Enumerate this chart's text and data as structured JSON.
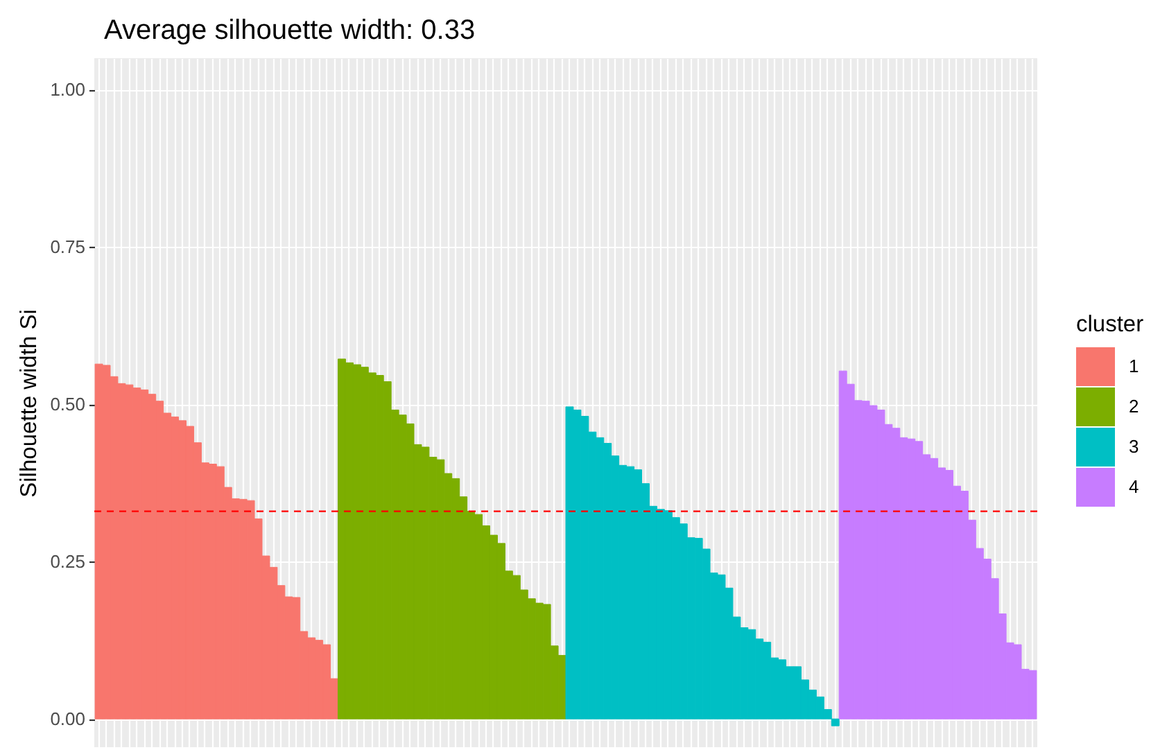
{
  "chart_data": {
    "type": "bar",
    "title": "Average silhouette width: 0.33",
    "ylabel": "Silhouette width Si",
    "legend_title": "cluster",
    "categories": [
      null,
      null,
      null,
      null,
      null,
      null,
      null,
      null,
      null,
      null,
      null,
      null,
      null,
      null,
      null,
      null,
      null,
      null,
      null,
      null,
      null,
      null,
      null,
      null,
      null,
      null,
      null,
      null,
      null,
      null,
      null,
      null,
      null,
      null,
      null,
      null,
      null,
      null,
      null,
      null,
      null,
      null,
      null,
      null,
      null,
      null,
      null,
      null,
      null,
      null,
      null,
      null,
      null,
      null,
      null,
      null,
      null,
      null,
      null,
      null,
      null,
      null,
      null,
      null,
      null,
      null,
      null,
      null,
      null,
      null,
      null,
      null,
      null,
      null,
      null,
      null,
      null,
      null,
      null,
      null,
      null,
      null,
      null,
      null,
      null,
      null,
      null,
      null,
      null,
      null,
      null,
      null,
      null,
      null,
      null,
      null,
      null,
      null,
      null,
      null,
      null,
      null,
      null,
      null,
      null,
      null,
      null,
      null,
      null,
      null,
      null,
      null,
      null,
      null,
      null,
      null,
      null,
      null,
      null,
      null,
      null,
      null,
      null,
      null
    ],
    "series": [
      {
        "name": "1",
        "color": "#f8766d",
        "values": [
          0.564,
          0.562,
          0.544,
          0.533,
          0.531,
          0.526,
          0.523,
          0.516,
          0.505,
          0.486,
          0.48,
          0.474,
          0.465,
          0.439,
          0.407,
          0.405,
          0.401,
          0.368,
          0.35,
          0.349,
          0.347,
          0.318,
          0.259,
          0.241,
          0.212,
          0.194,
          0.193,
          0.139,
          0.129,
          0.125,
          0.118,
          0.064,
          null,
          null,
          null,
          null,
          null,
          null,
          null,
          null,
          null,
          null,
          null,
          null,
          null,
          null,
          null,
          null,
          null,
          null,
          null,
          null,
          null,
          null,
          null,
          null,
          null,
          null,
          null,
          null,
          null,
          null,
          null,
          null,
          null,
          null,
          null,
          null,
          null,
          null,
          null,
          null,
          null,
          null,
          null,
          null,
          null,
          null,
          null,
          null,
          null,
          null,
          null,
          null,
          null,
          null,
          null,
          null,
          null,
          null,
          null,
          null,
          null,
          null,
          null,
          null,
          null,
          null,
          null,
          null,
          null,
          null,
          null,
          null,
          null,
          null,
          null,
          null,
          null,
          null,
          null,
          null,
          null,
          null,
          null,
          null,
          null,
          null,
          null,
          null,
          null,
          null,
          null,
          null
        ]
      },
      {
        "name": "2",
        "color": "#7cae00",
        "values": [
          null,
          null,
          null,
          null,
          null,
          null,
          null,
          null,
          null,
          null,
          null,
          null,
          null,
          null,
          null,
          null,
          null,
          null,
          null,
          null,
          null,
          null,
          null,
          null,
          null,
          null,
          null,
          null,
          null,
          null,
          null,
          null,
          0.572,
          0.566,
          0.563,
          0.559,
          0.55,
          0.546,
          0.536,
          0.491,
          0.483,
          0.469,
          0.436,
          0.432,
          0.416,
          0.412,
          0.39,
          0.382,
          0.353,
          0.33,
          0.325,
          0.307,
          0.292,
          0.279,
          0.235,
          0.228,
          0.205,
          0.191,
          0.184,
          0.182,
          0.116,
          0.101,
          null,
          null,
          null,
          null,
          null,
          null,
          null,
          null,
          null,
          null,
          null,
          null,
          null,
          null,
          null,
          null,
          null,
          null,
          null,
          null,
          null,
          null,
          null,
          null,
          null,
          null,
          null,
          null,
          null,
          null,
          null,
          null,
          null,
          null,
          null,
          null,
          null,
          null,
          null,
          null,
          null,
          null,
          null,
          null,
          null,
          null,
          null,
          null,
          null,
          null,
          null,
          null,
          null,
          null,
          null,
          null,
          null,
          null,
          null,
          null,
          null,
          null
        ]
      },
      {
        "name": "3",
        "color": "#00bfc4",
        "values": [
          null,
          null,
          null,
          null,
          null,
          null,
          null,
          null,
          null,
          null,
          null,
          null,
          null,
          null,
          null,
          null,
          null,
          null,
          null,
          null,
          null,
          null,
          null,
          null,
          null,
          null,
          null,
          null,
          null,
          null,
          null,
          null,
          null,
          null,
          null,
          null,
          null,
          null,
          null,
          null,
          null,
          null,
          null,
          null,
          null,
          null,
          null,
          null,
          null,
          null,
          null,
          null,
          null,
          null,
          null,
          null,
          null,
          null,
          null,
          null,
          null,
          null,
          0.496,
          0.491,
          0.481,
          0.456,
          0.447,
          0.438,
          0.418,
          0.403,
          0.401,
          0.396,
          0.374,
          0.338,
          0.333,
          0.331,
          0.32,
          0.31,
          0.288,
          0.287,
          0.27,
          0.232,
          0.229,
          0.208,
          0.162,
          0.145,
          0.142,
          0.127,
          0.122,
          0.097,
          0.094,
          0.083,
          0.083,
          0.062,
          0.046,
          0.035,
          0.015,
          -0.011,
          null,
          null,
          null,
          null,
          null,
          null,
          null,
          null,
          null,
          null,
          null,
          null,
          null,
          null,
          null,
          null,
          null,
          null,
          null,
          null,
          null,
          null,
          null,
          null,
          null,
          null
        ]
      },
      {
        "name": "4",
        "color": "#c77cff",
        "values": [
          null,
          null,
          null,
          null,
          null,
          null,
          null,
          null,
          null,
          null,
          null,
          null,
          null,
          null,
          null,
          null,
          null,
          null,
          null,
          null,
          null,
          null,
          null,
          null,
          null,
          null,
          null,
          null,
          null,
          null,
          null,
          null,
          null,
          null,
          null,
          null,
          null,
          null,
          null,
          null,
          null,
          null,
          null,
          null,
          null,
          null,
          null,
          null,
          null,
          null,
          null,
          null,
          null,
          null,
          null,
          null,
          null,
          null,
          null,
          null,
          null,
          null,
          null,
          null,
          null,
          null,
          null,
          null,
          null,
          null,
          null,
          null,
          null,
          null,
          null,
          null,
          null,
          null,
          null,
          null,
          null,
          null,
          null,
          null,
          null,
          null,
          null,
          null,
          null,
          null,
          null,
          null,
          null,
          null,
          null,
          null,
          null,
          null,
          0.553,
          0.532,
          0.506,
          0.505,
          0.498,
          0.491,
          0.468,
          0.462,
          0.447,
          0.445,
          0.441,
          0.42,
          0.414,
          0.399,
          0.395,
          0.37,
          0.362,
          0.316,
          0.271,
          0.254,
          0.223,
          0.167,
          0.121,
          0.118,
          0.079,
          0.077
        ]
      }
    ],
    "ylim": [
      -0.045,
      1.05
    ],
    "yticks": [
      {
        "value": 0,
        "label": "0.00"
      },
      {
        "value": 0.25,
        "label": "0.25"
      },
      {
        "value": 0.5,
        "label": "0.50"
      },
      {
        "value": 0.75,
        "label": "0.75"
      },
      {
        "value": 1,
        "label": "1.00"
      }
    ],
    "ref_lines": [
      {
        "axis": "y",
        "value": 0.33,
        "color": "#ff0000",
        "line_style": "dashed"
      }
    ],
    "grid": true,
    "legend": "right",
    "tick_labels": "y"
  }
}
